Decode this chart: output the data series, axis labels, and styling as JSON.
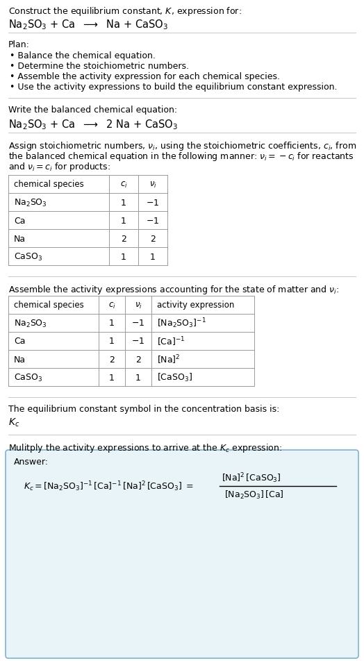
{
  "title_line1": "Construct the equilibrium constant, $K$, expression for:",
  "title_line2": "Na$_2$SO$_3$ + Ca  $\\longrightarrow$  Na + CaSO$_3$",
  "plan_header": "Plan:",
  "plan_items": [
    "• Balance the chemical equation.",
    "• Determine the stoichiometric numbers.",
    "• Assemble the activity expression for each chemical species.",
    "• Use the activity expressions to build the equilibrium constant expression."
  ],
  "balanced_header": "Write the balanced chemical equation:",
  "balanced_eq": "Na$_2$SO$_3$ + Ca  $\\longrightarrow$  2 Na + CaSO$_3$",
  "stoich_intro_lines": [
    "Assign stoichiometric numbers, $\\nu_i$, using the stoichiometric coefficients, $c_i$, from",
    "the balanced chemical equation in the following manner: $\\nu_i = -c_i$ for reactants",
    "and $\\nu_i = c_i$ for products:"
  ],
  "table1_headers": [
    "chemical species",
    "$c_i$",
    "$\\nu_i$"
  ],
  "table1_rows": [
    [
      "Na$_2$SO$_3$",
      "1",
      "$-1$"
    ],
    [
      "Ca",
      "1",
      "$-1$"
    ],
    [
      "Na",
      "2",
      "2"
    ],
    [
      "CaSO$_3$",
      "1",
      "1"
    ]
  ],
  "activity_intro": "Assemble the activity expressions accounting for the state of matter and $\\nu_i$:",
  "table2_headers": [
    "chemical species",
    "$c_i$",
    "$\\nu_i$",
    "activity expression"
  ],
  "table2_rows": [
    [
      "Na$_2$SO$_3$",
      "1",
      "$-1$",
      "[Na$_2$SO$_3$]$^{-1}$"
    ],
    [
      "Ca",
      "1",
      "$-1$",
      "[Ca]$^{-1}$"
    ],
    [
      "Na",
      "2",
      "2",
      "[Na]$^2$"
    ],
    [
      "CaSO$_3$",
      "1",
      "1",
      "[CaSO$_3$]"
    ]
  ],
  "kc_intro": "The equilibrium constant symbol in the concentration basis is:",
  "kc_symbol": "$K_c$",
  "multiply_intro": "Mulitply the activity expressions to arrive at the $K_c$ expression:",
  "answer_label": "Answer:",
  "bg_color": "#ffffff",
  "table_border_color": "#999999",
  "answer_bg_color": "#e8f4f8",
  "answer_border_color": "#7fb3cc",
  "text_color": "#000000",
  "font_size": 9.0
}
